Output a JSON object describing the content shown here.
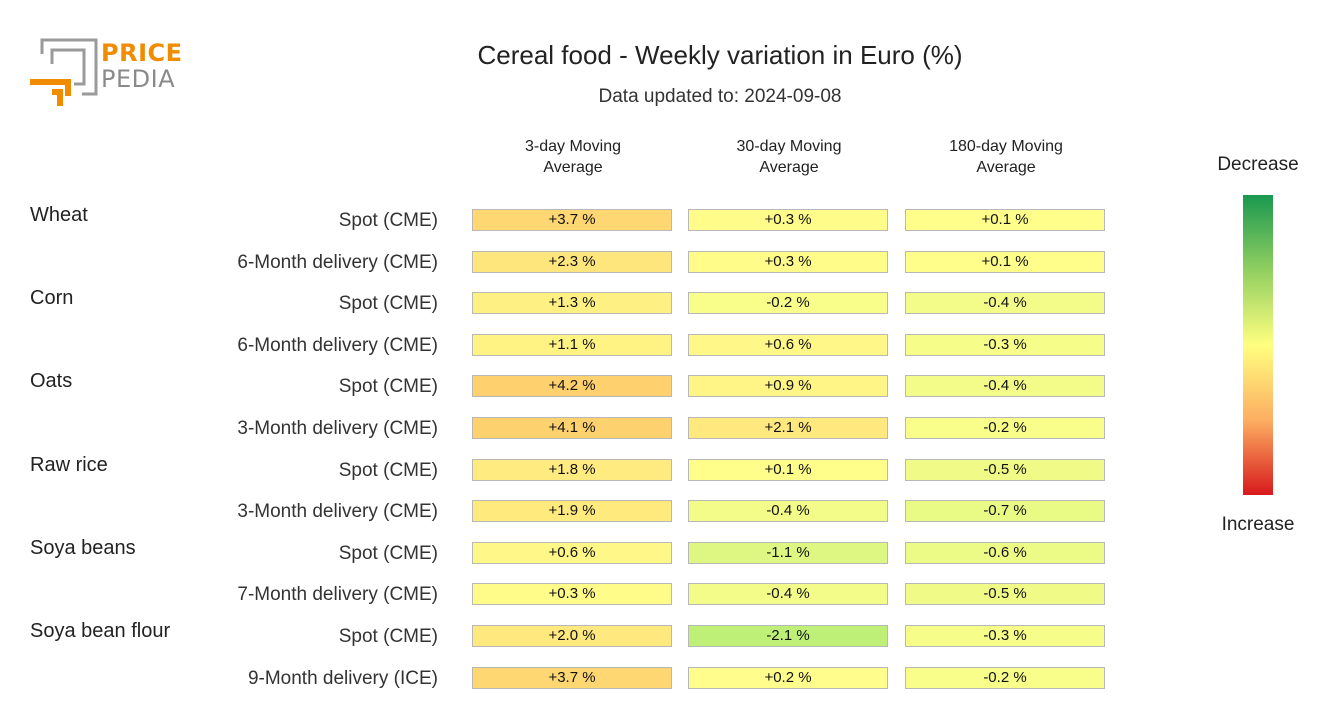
{
  "logo": {
    "line1": "PRICE",
    "line2": "PEDIA"
  },
  "title": "Cereal food - Weekly variation in Euro (%)",
  "subtitle": "Data updated to: 2024-09-08",
  "legend": {
    "top": "Decrease",
    "bottom": "Increase",
    "colors": [
      "#1a9850",
      "#91cf60",
      "#ffff80",
      "#fdae61",
      "#d7191c"
    ]
  },
  "chart_data": {
    "type": "table",
    "title": "Cereal food - Weekly variation in Euro (%)",
    "columns": [
      "3-day Moving Average",
      "30-day Moving Average",
      "180-day Moving Average"
    ],
    "column_lines": [
      [
        "3-day Moving",
        "Average"
      ],
      [
        "30-day Moving",
        "Average"
      ],
      [
        "180-day Moving",
        "Average"
      ]
    ],
    "groups": [
      {
        "name": "Wheat",
        "rows": [
          {
            "label": "Spot (CME)",
            "values": [
              3.7,
              0.3,
              0.1
            ],
            "texts": [
              "+3.7 %",
              "+0.3 %",
              "+0.1 %"
            ]
          },
          {
            "label": "6-Month delivery (CME)",
            "values": [
              2.3,
              0.3,
              0.1
            ],
            "texts": [
              "+2.3 %",
              "+0.3 %",
              "+0.1 %"
            ]
          }
        ]
      },
      {
        "name": "Corn",
        "rows": [
          {
            "label": "Spot (CME)",
            "values": [
              1.3,
              -0.2,
              -0.4
            ],
            "texts": [
              "+1.3 %",
              "-0.2 %",
              "-0.4 %"
            ]
          },
          {
            "label": "6-Month delivery (CME)",
            "values": [
              1.1,
              0.6,
              -0.3
            ],
            "texts": [
              "+1.1 %",
              "+0.6 %",
              "-0.3 %"
            ]
          }
        ]
      },
      {
        "name": "Oats",
        "rows": [
          {
            "label": "Spot (CME)",
            "values": [
              4.2,
              0.9,
              -0.4
            ],
            "texts": [
              "+4.2 %",
              "+0.9 %",
              "-0.4 %"
            ]
          },
          {
            "label": "3-Month delivery (CME)",
            "values": [
              4.1,
              2.1,
              -0.2
            ],
            "texts": [
              "+4.1 %",
              "+2.1 %",
              "-0.2 %"
            ]
          }
        ]
      },
      {
        "name": "Raw rice",
        "rows": [
          {
            "label": "Spot (CME)",
            "values": [
              1.8,
              0.1,
              -0.5
            ],
            "texts": [
              "+1.8 %",
              "+0.1 %",
              "-0.5 %"
            ]
          },
          {
            "label": "3-Month delivery (CME)",
            "values": [
              1.9,
              -0.4,
              -0.7
            ],
            "texts": [
              "+1.9 %",
              "-0.4 %",
              "-0.7 %"
            ]
          }
        ]
      },
      {
        "name": "Soya beans",
        "rows": [
          {
            "label": "Spot (CME)",
            "values": [
              0.6,
              -1.1,
              -0.6
            ],
            "texts": [
              "+0.6 %",
              "-1.1 %",
              "-0.6 %"
            ]
          },
          {
            "label": "7-Month delivery (CME)",
            "values": [
              0.3,
              -0.4,
              -0.5
            ],
            "texts": [
              "+0.3 %",
              "-0.4 %",
              "-0.5 %"
            ]
          }
        ]
      },
      {
        "name": "Soya bean flour",
        "rows": [
          {
            "label": "Spot (CME)",
            "values": [
              2.0,
              -2.1,
              -0.3
            ],
            "texts": [
              "+2.0 %",
              "-2.1 %",
              "-0.3 %"
            ]
          },
          {
            "label": "9-Month delivery (ICE)",
            "values": [
              3.7,
              0.2,
              -0.2
            ],
            "texts": [
              "+3.7 %",
              "+0.2 %",
              "-0.2 %"
            ]
          }
        ]
      }
    ]
  }
}
